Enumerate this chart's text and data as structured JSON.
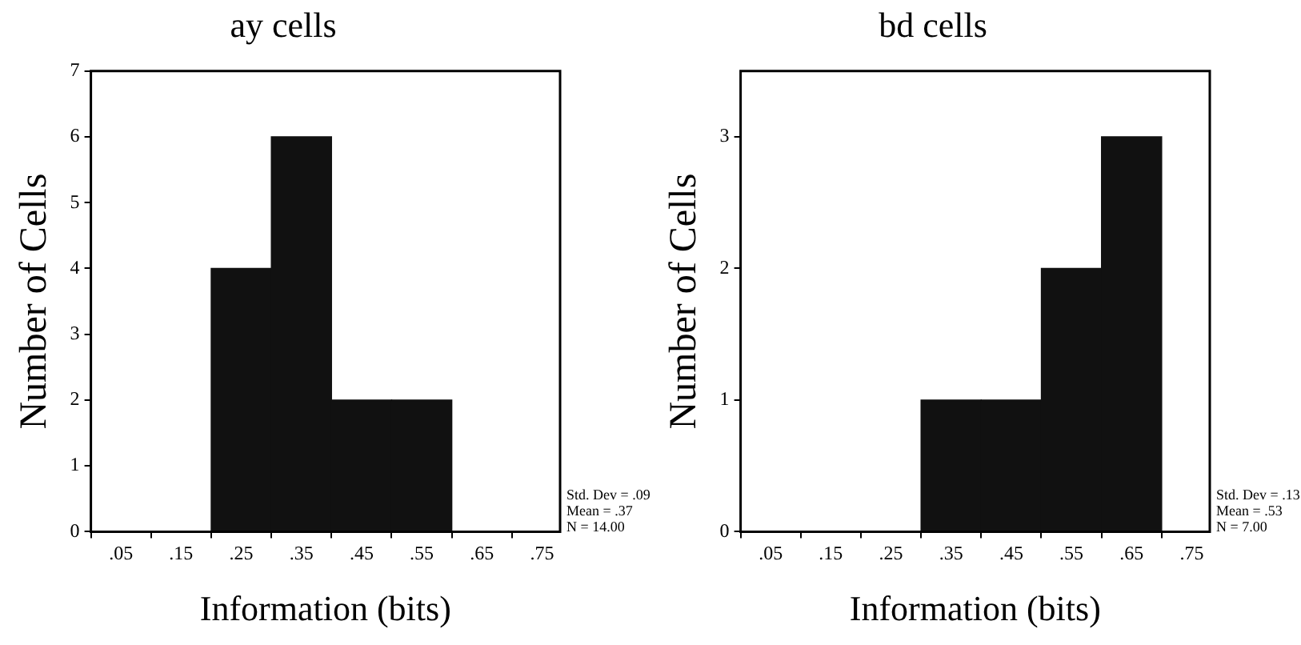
{
  "chart_data": [
    {
      "type": "histogram",
      "title": "ay cells",
      "xlabel": "Information (bits)",
      "ylabel": "Number of Cells",
      "bins": [
        0.2,
        0.3,
        0.4,
        0.5,
        0.6
      ],
      "values": [
        4,
        6,
        2,
        2
      ],
      "color": "#111111",
      "xlim": [
        0,
        0.78
      ],
      "xticks": [
        {
          "value": 0.05,
          "label": ".05"
        },
        {
          "value": 0.15,
          "label": ".15"
        },
        {
          "value": 0.25,
          "label": ".25"
        },
        {
          "value": 0.35,
          "label": ".35"
        },
        {
          "value": 0.45,
          "label": ".45"
        },
        {
          "value": 0.55,
          "label": ".55"
        },
        {
          "value": 0.65,
          "label": ".65"
        },
        {
          "value": 0.75,
          "label": ".75"
        }
      ],
      "ylim": [
        0,
        7
      ],
      "yticks": [
        0,
        1,
        2,
        3,
        4,
        5,
        6,
        7
      ],
      "grid": false,
      "legend": false,
      "annotations": [
        "Std. Dev = .09",
        "Mean = .37",
        "N = 14.00"
      ]
    },
    {
      "type": "histogram",
      "title": "bd cells",
      "xlabel": "Information (bits)",
      "ylabel": "Number of Cells",
      "bins": [
        0.3,
        0.4,
        0.5,
        0.6,
        0.7
      ],
      "values": [
        1,
        1,
        2,
        3
      ],
      "color": "#111111",
      "xlim": [
        0,
        0.78
      ],
      "xticks": [
        {
          "value": 0.05,
          "label": ".05"
        },
        {
          "value": 0.15,
          "label": ".15"
        },
        {
          "value": 0.25,
          "label": ".25"
        },
        {
          "value": 0.35,
          "label": ".35"
        },
        {
          "value": 0.45,
          "label": ".45"
        },
        {
          "value": 0.55,
          "label": ".55"
        },
        {
          "value": 0.65,
          "label": ".65"
        },
        {
          "value": 0.75,
          "label": ".75"
        }
      ],
      "ylim": [
        0,
        3.5
      ],
      "yticks": [
        0,
        1,
        2,
        3
      ],
      "grid": false,
      "legend": false,
      "annotations": [
        "Std. Dev = .13",
        "Mean = .53",
        "N = 7.00"
      ]
    }
  ]
}
